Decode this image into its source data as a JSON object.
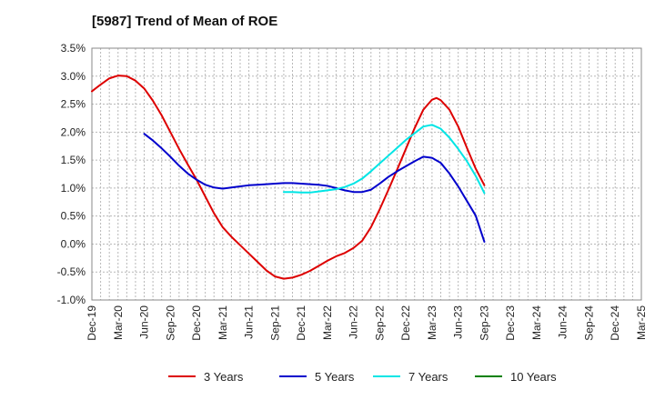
{
  "chart_data": {
    "type": "line",
    "title": "[5987]  Trend of Mean of ROE",
    "xlabel": "",
    "ylabel": "",
    "ylim": [
      -1.0,
      3.5
    ],
    "y_ticks": [
      -1.0,
      -0.5,
      0.0,
      0.5,
      1.0,
      1.5,
      2.0,
      2.5,
      3.0,
      3.5
    ],
    "y_tick_labels": [
      "-1.0%",
      "-0.5%",
      "0.0%",
      "0.5%",
      "1.0%",
      "1.5%",
      "2.0%",
      "2.5%",
      "3.0%",
      "3.5%"
    ],
    "x_tick_labels": [
      "Dec-19",
      "Mar-20",
      "Jun-20",
      "Sep-20",
      "Dec-20",
      "Mar-21",
      "Jun-21",
      "Sep-21",
      "Dec-21",
      "Mar-22",
      "Jun-22",
      "Sep-22",
      "Dec-22",
      "Mar-23",
      "Jun-23",
      "Sep-23",
      "Dec-23",
      "Mar-24",
      "Jun-24",
      "Sep-24",
      "Dec-24",
      "Mar-25"
    ],
    "grid": true,
    "legend_position": "bottom",
    "series": [
      {
        "name": "3 Years",
        "color": "#dd0000",
        "points": [
          [
            0,
            2.73
          ],
          [
            1,
            2.85
          ],
          [
            2,
            2.96
          ],
          [
            3,
            3.01
          ],
          [
            4,
            3.0
          ],
          [
            5,
            2.92
          ],
          [
            6,
            2.78
          ],
          [
            7,
            2.56
          ],
          [
            8,
            2.3
          ],
          [
            9,
            2.0
          ],
          [
            10,
            1.7
          ],
          [
            11,
            1.42
          ],
          [
            12,
            1.15
          ],
          [
            13,
            0.85
          ],
          [
            14,
            0.55
          ],
          [
            15,
            0.3
          ],
          [
            16,
            0.13
          ],
          [
            17,
            -0.02
          ],
          [
            18,
            -0.17
          ],
          [
            19,
            -0.32
          ],
          [
            20,
            -0.47
          ],
          [
            21,
            -0.58
          ],
          [
            22,
            -0.62
          ],
          [
            23,
            -0.6
          ],
          [
            24,
            -0.55
          ],
          [
            25,
            -0.48
          ],
          [
            26,
            -0.39
          ],
          [
            27,
            -0.3
          ],
          [
            28,
            -0.22
          ],
          [
            29,
            -0.16
          ],
          [
            30,
            -0.07
          ],
          [
            31,
            0.06
          ],
          [
            32,
            0.3
          ],
          [
            33,
            0.62
          ],
          [
            34,
            0.97
          ],
          [
            35,
            1.33
          ],
          [
            36,
            1.7
          ],
          [
            37,
            2.07
          ],
          [
            38,
            2.4
          ],
          [
            39,
            2.58
          ],
          [
            39.5,
            2.61
          ],
          [
            40,
            2.57
          ],
          [
            41,
            2.4
          ],
          [
            42,
            2.1
          ],
          [
            43,
            1.72
          ],
          [
            44,
            1.35
          ],
          [
            45,
            1.05
          ]
        ]
      },
      {
        "name": "5 Years",
        "color": "#0000cc",
        "points": [
          [
            6,
            1.97
          ],
          [
            7,
            1.85
          ],
          [
            8,
            1.71
          ],
          [
            9,
            1.56
          ],
          [
            10,
            1.4
          ],
          [
            11,
            1.26
          ],
          [
            12,
            1.15
          ],
          [
            13,
            1.06
          ],
          [
            14,
            1.01
          ],
          [
            15,
            0.99
          ],
          [
            16,
            1.01
          ],
          [
            17,
            1.03
          ],
          [
            18,
            1.05
          ],
          [
            19,
            1.06
          ],
          [
            20,
            1.07
          ],
          [
            21,
            1.08
          ],
          [
            22,
            1.09
          ],
          [
            23,
            1.09
          ],
          [
            24,
            1.08
          ],
          [
            25,
            1.07
          ],
          [
            26,
            1.06
          ],
          [
            27,
            1.04
          ],
          [
            28,
            1.0
          ],
          [
            29,
            0.96
          ],
          [
            30,
            0.93
          ],
          [
            31,
            0.93
          ],
          [
            32,
            0.97
          ],
          [
            33,
            1.08
          ],
          [
            34,
            1.2
          ],
          [
            35,
            1.3
          ],
          [
            36,
            1.39
          ],
          [
            37,
            1.48
          ],
          [
            38,
            1.56
          ],
          [
            39,
            1.54
          ],
          [
            40,
            1.45
          ],
          [
            41,
            1.26
          ],
          [
            42,
            1.03
          ],
          [
            43,
            0.77
          ],
          [
            44,
            0.51
          ],
          [
            45,
            0.04
          ]
        ]
      },
      {
        "name": "7 Years",
        "color": "#00e5e5",
        "points": [
          [
            22,
            0.93
          ],
          [
            23,
            0.93
          ],
          [
            24,
            0.92
          ],
          [
            25,
            0.92
          ],
          [
            26,
            0.94
          ],
          [
            27,
            0.96
          ],
          [
            28,
            0.98
          ],
          [
            29,
            1.02
          ],
          [
            30,
            1.08
          ],
          [
            31,
            1.17
          ],
          [
            32,
            1.3
          ],
          [
            33,
            1.44
          ],
          [
            34,
            1.58
          ],
          [
            35,
            1.72
          ],
          [
            36,
            1.86
          ],
          [
            37,
            1.98
          ],
          [
            38,
            2.1
          ],
          [
            39,
            2.13
          ],
          [
            40,
            2.06
          ],
          [
            41,
            1.9
          ],
          [
            42,
            1.7
          ],
          [
            43,
            1.48
          ],
          [
            44,
            1.22
          ],
          [
            45,
            0.91
          ]
        ]
      },
      {
        "name": "10 Years",
        "color": "#008000",
        "points": []
      }
    ]
  }
}
